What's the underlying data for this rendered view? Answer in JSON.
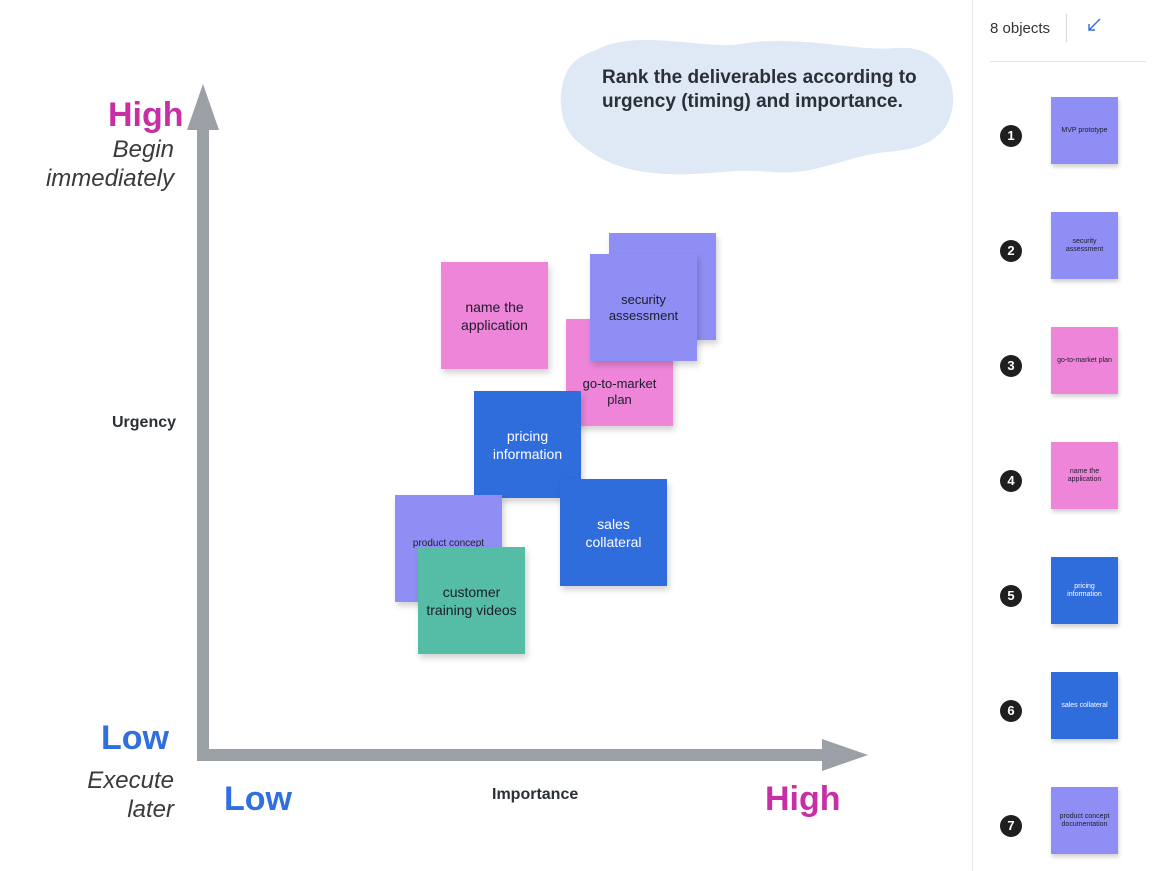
{
  "instruction": "Rank the deliverables according to urgency (timing) and importance.",
  "y_axis": {
    "high": "High",
    "high_sub_1": "Begin",
    "high_sub_2": "immediately",
    "name": "Urgency",
    "low": "Low",
    "low_sub_1": "Execute",
    "low_sub_2": "later"
  },
  "x_axis": {
    "low": "Low",
    "name": "Importance",
    "high": "High"
  },
  "colors": {
    "high": "#c72fa6",
    "low": "#2f6fe0",
    "purple_note": "#8f8ef5",
    "pink_note": "#ee85d9",
    "blue_note": "#2f6cdc",
    "green_note": "#55bda5",
    "axis": "#9aa0a6"
  },
  "stickies": [
    {
      "text": "name the application",
      "color": "pink"
    },
    {
      "text": "security assessment",
      "color": "purple"
    },
    {
      "text": "go-to-market plan",
      "color": "pink"
    },
    {
      "text": "pricing information",
      "color": "blue"
    },
    {
      "text": "sales collateral",
      "color": "blue"
    },
    {
      "text": "product concept",
      "color": "purple"
    },
    {
      "text": "customer training videos",
      "color": "green"
    }
  ],
  "panel": {
    "count": "8 objects",
    "collapse_icon": "collapse-arrow-icon",
    "items": [
      {
        "n": "1",
        "text": "MVP prototype",
        "color": "purple"
      },
      {
        "n": "2",
        "text": "security assessment",
        "color": "purple"
      },
      {
        "n": "3",
        "text": "go-to-market plan",
        "color": "pink"
      },
      {
        "n": "4",
        "text": "name the application",
        "color": "pink"
      },
      {
        "n": "5",
        "text": "pricing information",
        "color": "blue"
      },
      {
        "n": "6",
        "text": "sales collateral",
        "color": "blue"
      },
      {
        "n": "7",
        "text": "product concept documentation",
        "color": "purple"
      }
    ]
  }
}
